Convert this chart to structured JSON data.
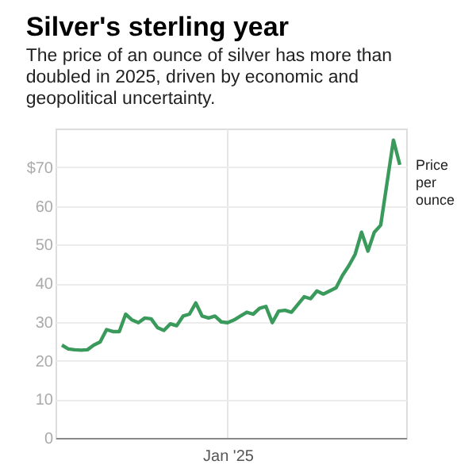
{
  "chart_data": {
    "type": "line",
    "title": "Silver's sterling year",
    "subtitle": "The price of an ounce of silver has more than doubled in 2025, driven by economic and geopolitical uncertainty.",
    "categories": [
      null,
      null,
      null,
      null,
      null,
      null,
      null,
      null,
      null,
      null,
      null,
      null,
      null,
      null,
      null,
      null,
      null,
      null,
      null,
      null,
      null,
      null,
      null,
      null,
      null,
      null,
      "Jan '25",
      null,
      null,
      null,
      null,
      null,
      null,
      null,
      null,
      null,
      null,
      null,
      null,
      null,
      null,
      null,
      null,
      null,
      null,
      null,
      null,
      null,
      null,
      null,
      null,
      null,
      null,
      null
    ],
    "series": [
      {
        "name": "Price per ounce",
        "color": "#3a9a5b",
        "values": [
          24.0,
          23.0,
          22.8,
          22.7,
          22.8,
          24.0,
          24.8,
          28.0,
          27.5,
          27.5,
          32.0,
          30.5,
          29.8,
          31.0,
          30.8,
          28.5,
          27.8,
          29.5,
          29.0,
          31.5,
          32.0,
          34.9,
          31.5,
          31.0,
          31.5,
          30.0,
          29.8,
          30.5,
          31.5,
          32.5,
          32.0,
          33.5,
          34.0,
          29.8,
          32.8,
          33.0,
          32.5,
          34.5,
          36.5,
          36.0,
          38.0,
          37.2,
          38.0,
          38.8,
          42.0,
          44.5,
          47.5,
          53.2,
          48.3,
          53.2,
          55.0,
          66.0,
          77.0,
          70.6
        ]
      }
    ],
    "ylim": [
      0,
      80
    ],
    "yticks": [
      0,
      10,
      20,
      30,
      40,
      50,
      60,
      {
        "value": 70,
        "label": "$70"
      }
    ],
    "grid": true,
    "legend": false,
    "line_style": "solid",
    "marker": "none"
  }
}
